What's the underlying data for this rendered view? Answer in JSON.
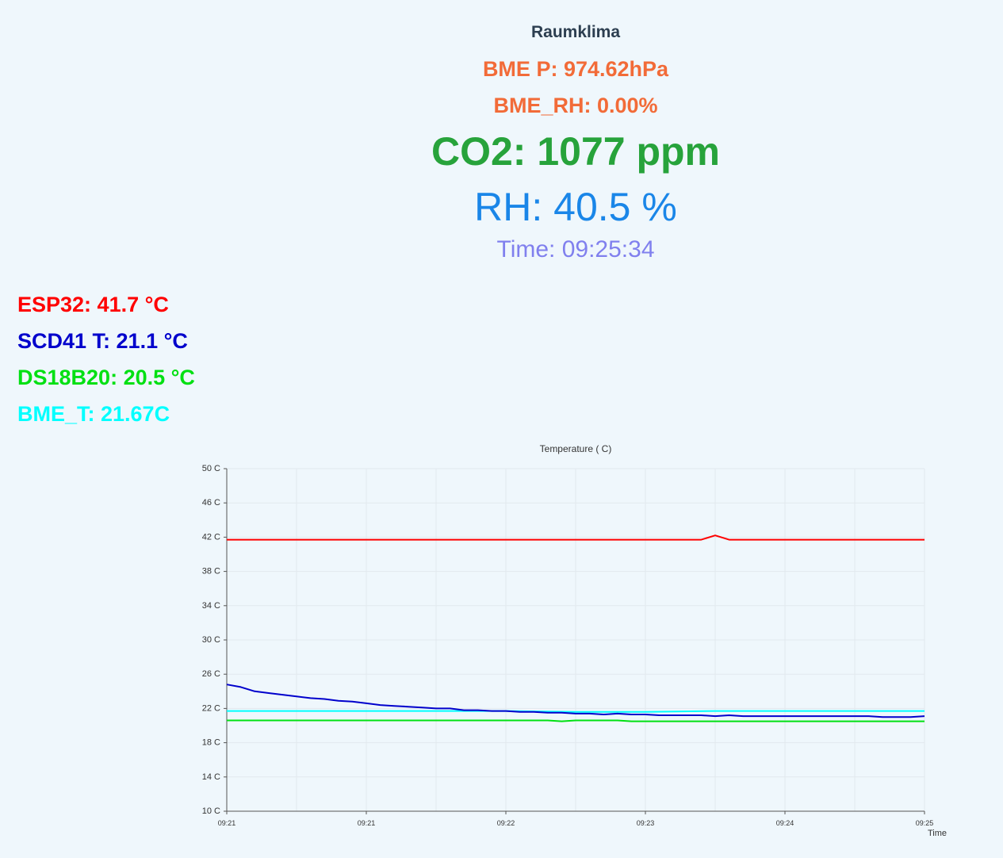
{
  "header": {
    "title": "Raumklima",
    "bme_pressure": "BME P: 974.62hPa",
    "bme_rh": "BME_RH: 0.00%",
    "co2": "CO2: 1077 ppm",
    "rh": "RH: 40.5 %",
    "time": "Time: 09:25:34"
  },
  "temperatures": {
    "esp32": "ESP32: 41.7 °C",
    "scd41": "SCD41 T: 21.1 °C",
    "ds18b20": "DS18B20: 20.5 °C",
    "bme_t": "BME_T: 21.67C"
  },
  "colors": {
    "esp32": "#ff0000",
    "scd41": "#0000cc",
    "ds18b20": "#00e012",
    "bme_t": "#00ffff"
  },
  "chart_data": {
    "type": "line",
    "title": "Temperature ( C)",
    "xlabel": "Time",
    "ylabel": "",
    "ylim": [
      10,
      50
    ],
    "y_ticks": [
      "10 C",
      "14 C",
      "18 C",
      "22 C",
      "26 C",
      "30 C",
      "34 C",
      "38 C",
      "42 C",
      "46 C",
      "50 C"
    ],
    "y_tick_values": [
      10,
      14,
      18,
      22,
      26,
      30,
      34,
      38,
      42,
      46,
      50
    ],
    "x_ticks": [
      "09:21",
      "09:21",
      "09:22",
      "09:23",
      "09:24",
      "09:25"
    ],
    "x_tick_positions": [
      0,
      0.2,
      0.4,
      0.6,
      0.8,
      1.0
    ],
    "grid": true,
    "legend": "none",
    "series": [
      {
        "key": "esp32",
        "color": "#ff0000",
        "x": [
          0,
          0.1,
          0.2,
          0.3,
          0.4,
          0.5,
          0.6,
          0.68,
          0.7,
          0.72,
          0.8,
          0.9,
          1.0
        ],
        "values": [
          41.7,
          41.7,
          41.7,
          41.7,
          41.7,
          41.7,
          41.7,
          41.7,
          42.2,
          41.7,
          41.7,
          41.7,
          41.7
        ]
      },
      {
        "key": "scd41",
        "color": "#0000cc",
        "x": [
          0,
          0.02,
          0.04,
          0.06,
          0.08,
          0.1,
          0.12,
          0.14,
          0.16,
          0.18,
          0.2,
          0.22,
          0.24,
          0.26,
          0.28,
          0.3,
          0.32,
          0.34,
          0.36,
          0.38,
          0.4,
          0.42,
          0.44,
          0.46,
          0.48,
          0.5,
          0.52,
          0.54,
          0.56,
          0.58,
          0.6,
          0.62,
          0.64,
          0.66,
          0.68,
          0.7,
          0.72,
          0.74,
          0.76,
          0.78,
          0.8,
          0.82,
          0.84,
          0.86,
          0.88,
          0.9,
          0.92,
          0.94,
          0.96,
          0.98,
          1.0
        ],
        "values": [
          24.8,
          24.5,
          24.0,
          23.8,
          23.6,
          23.4,
          23.2,
          23.1,
          22.9,
          22.8,
          22.6,
          22.4,
          22.3,
          22.2,
          22.1,
          22.0,
          22.0,
          21.8,
          21.8,
          21.7,
          21.7,
          21.6,
          21.6,
          21.5,
          21.5,
          21.4,
          21.4,
          21.3,
          21.4,
          21.3,
          21.3,
          21.2,
          21.2,
          21.2,
          21.2,
          21.1,
          21.2,
          21.1,
          21.1,
          21.1,
          21.1,
          21.1,
          21.1,
          21.1,
          21.1,
          21.1,
          21.1,
          21.0,
          21.0,
          21.0,
          21.1
        ]
      },
      {
        "key": "ds18b20",
        "color": "#00e012",
        "x": [
          0,
          0.1,
          0.2,
          0.3,
          0.4,
          0.46,
          0.48,
          0.5,
          0.56,
          0.58,
          0.6,
          0.7,
          0.8,
          0.9,
          1.0
        ],
        "values": [
          20.6,
          20.6,
          20.6,
          20.6,
          20.6,
          20.6,
          20.5,
          20.6,
          20.6,
          20.5,
          20.5,
          20.5,
          20.5,
          20.5,
          20.5
        ]
      },
      {
        "key": "bme_t",
        "color": "#00ffff",
        "x": [
          0,
          0.1,
          0.2,
          0.3,
          0.4,
          0.5,
          0.6,
          0.7,
          0.8,
          0.9,
          1.0
        ],
        "values": [
          21.7,
          21.7,
          21.7,
          21.7,
          21.7,
          21.6,
          21.6,
          21.7,
          21.7,
          21.7,
          21.7
        ]
      }
    ]
  }
}
